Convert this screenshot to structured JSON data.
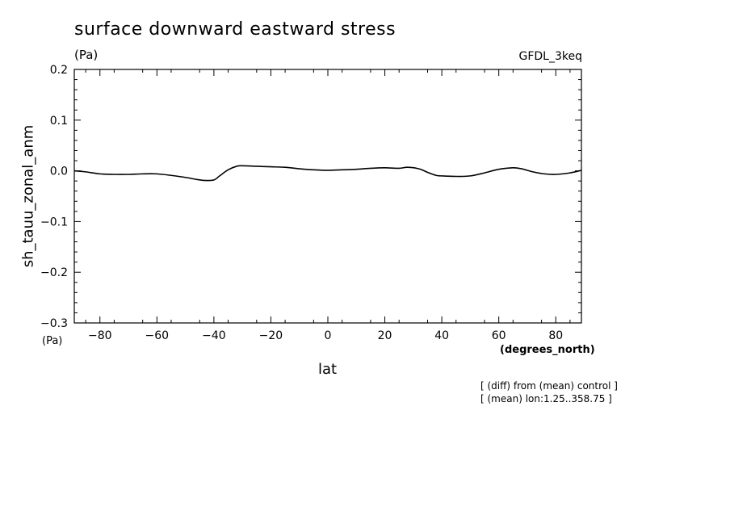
{
  "chart_data": {
    "type": "line",
    "title": "surface downward eastward stress",
    "units_label": "(Pa)",
    "model": "GFDL_3keq",
    "ylabel": "sh_tauu_zonal_anm",
    "yunits": "(Pa)",
    "xlabel": "lat",
    "xunits": "(degrees_north)",
    "xlim": [
      -89,
      89
    ],
    "ylim": [
      -0.3,
      0.2
    ],
    "xticks": [
      -80,
      -60,
      -40,
      -20,
      0,
      20,
      40,
      60,
      80
    ],
    "xtick_labels": [
      "−80",
      "−60",
      "−40",
      "−20",
      "0",
      "20",
      "40",
      "60",
      "80"
    ],
    "yticks": [
      0.2,
      0.1,
      0.0,
      -0.1,
      -0.2,
      -0.3
    ],
    "ytick_labels": [
      "0.2",
      "0.1",
      "0.0",
      "−0.1",
      "−0.2",
      "−0.3"
    ],
    "grid": false,
    "series": [
      {
        "x": [
          -89,
          -85,
          -80,
          -75,
          -70,
          -65,
          -60,
          -55,
          -50,
          -46,
          -43,
          -40,
          -38,
          -35,
          -32,
          -30,
          -25,
          -20,
          -15,
          -10,
          -5,
          0,
          5,
          10,
          15,
          20,
          25,
          28,
          32,
          35,
          38,
          40,
          45,
          50,
          55,
          60,
          65,
          68,
          72,
          76,
          80,
          85,
          89
        ],
        "y": [
          0.0,
          -0.002,
          -0.006,
          -0.007,
          -0.007,
          -0.006,
          -0.006,
          -0.009,
          -0.013,
          -0.017,
          -0.019,
          -0.018,
          -0.01,
          0.002,
          0.009,
          0.01,
          0.009,
          0.008,
          0.007,
          0.004,
          0.002,
          0.001,
          0.002,
          0.003,
          0.005,
          0.006,
          0.005,
          0.007,
          0.004,
          -0.003,
          -0.009,
          -0.01,
          -0.011,
          -0.01,
          -0.004,
          0.003,
          0.006,
          0.004,
          -0.002,
          -0.006,
          -0.007,
          -0.004,
          0.001
        ]
      }
    ]
  },
  "notes": [
    "[ (diff) from (mean) control ]",
    "[ (mean) lon:1.25..358.75 ]"
  ]
}
